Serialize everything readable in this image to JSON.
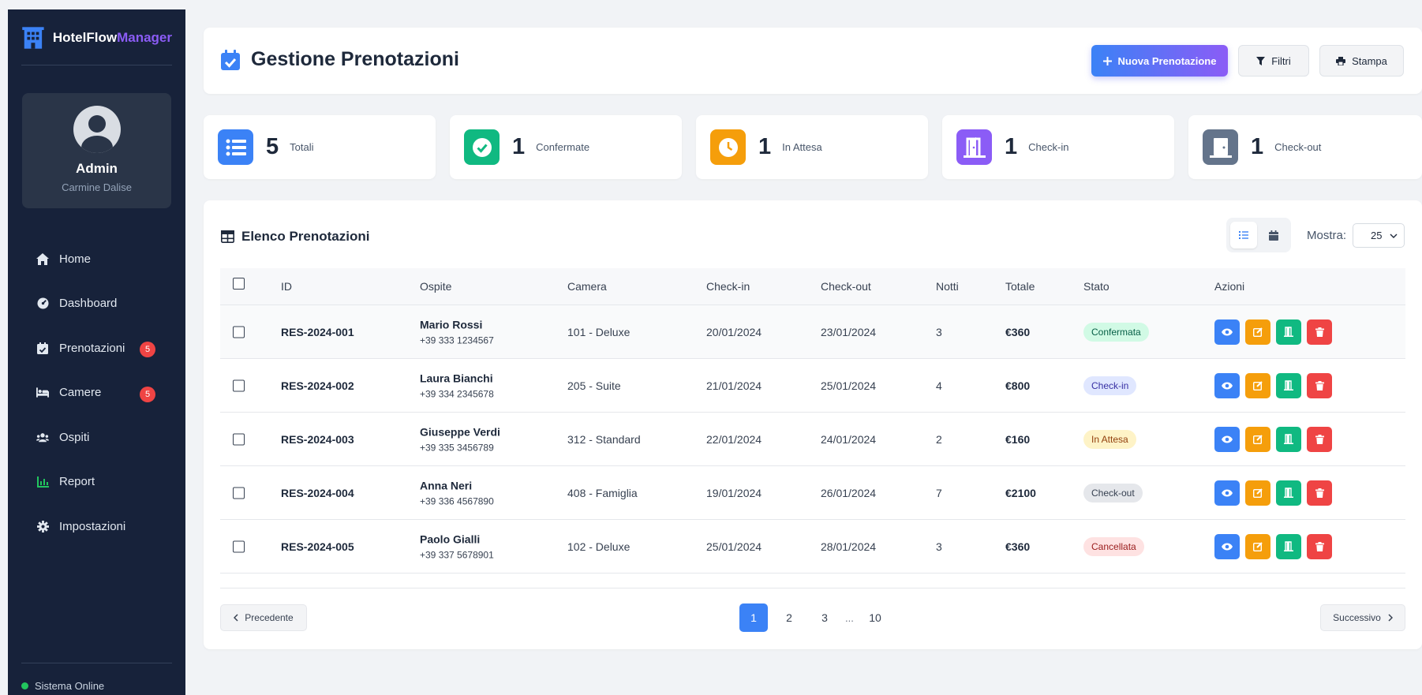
{
  "brand": {
    "name_main": "HotelFlow",
    "name_accent": "Manager"
  },
  "profile": {
    "name": "Admin",
    "subtitle": "Carmine Dalise"
  },
  "sidebar": {
    "items": [
      {
        "label": "Home",
        "icon": "home-icon"
      },
      {
        "label": "Dashboard",
        "icon": "gauge-icon"
      },
      {
        "label": "Prenotazioni",
        "icon": "calendar-check-icon",
        "badge": "5"
      },
      {
        "label": "Camere",
        "icon": "bed-icon",
        "badge": "5"
      },
      {
        "label": "Ospiti",
        "icon": "users-icon"
      },
      {
        "label": "Report",
        "icon": "chart-icon"
      },
      {
        "label": "Impostazioni",
        "icon": "gear-icon"
      }
    ],
    "status": "Sistema Online"
  },
  "header": {
    "title": "Gestione Prenotazioni",
    "new_label": "Nuova Prenotazione",
    "filter_label": "Filtri",
    "print_label": "Stampa"
  },
  "stats": [
    {
      "value": "5",
      "label": "Totali",
      "color": "#3b82f6",
      "icon": "list-icon"
    },
    {
      "value": "1",
      "label": "Confermate",
      "color": "#10b981",
      "icon": "check-circle-icon"
    },
    {
      "value": "1",
      "label": "In Attesa",
      "color": "#f59e0b",
      "icon": "clock-icon"
    },
    {
      "value": "1",
      "label": "Check-in",
      "color": "#8b5cf6",
      "icon": "door-open-icon"
    },
    {
      "value": "1",
      "label": "Check-out",
      "color": "#64748b",
      "icon": "door-closed-icon"
    }
  ],
  "list": {
    "title": "Elenco Prenotazioni",
    "show_label": "Mostra:",
    "show_value": "25",
    "columns": [
      "ID",
      "Ospite",
      "Camera",
      "Check-in",
      "Check-out",
      "Notti",
      "Totale",
      "Stato",
      "Azioni"
    ],
    "rows": [
      {
        "id": "RES-2024-001",
        "guest": "Mario Rossi",
        "phone": "+39 333 1234567",
        "room": "101 - Deluxe",
        "checkin": "20/01/2024",
        "checkout": "23/01/2024",
        "nights": "3",
        "total": "€360",
        "status": "Confermata",
        "status_bg": "#d1fae5",
        "status_fg": "#065f46"
      },
      {
        "id": "RES-2024-002",
        "guest": "Laura Bianchi",
        "phone": "+39 334 2345678",
        "room": "205 - Suite",
        "checkin": "21/01/2024",
        "checkout": "25/01/2024",
        "nights": "4",
        "total": "€800",
        "status": "Check-in",
        "status_bg": "#e0e7ff",
        "status_fg": "#3730a3"
      },
      {
        "id": "RES-2024-003",
        "guest": "Giuseppe Verdi",
        "phone": "+39 335 3456789",
        "room": "312 - Standard",
        "checkin": "22/01/2024",
        "checkout": "24/01/2024",
        "nights": "2",
        "total": "€160",
        "status": "In Attesa",
        "status_bg": "#fef3c7",
        "status_fg": "#92400e"
      },
      {
        "id": "RES-2024-004",
        "guest": "Anna Neri",
        "phone": "+39 336 4567890",
        "room": "408 - Famiglia",
        "checkin": "19/01/2024",
        "checkout": "26/01/2024",
        "nights": "7",
        "total": "€2100",
        "status": "Check-out",
        "status_bg": "#e5e7eb",
        "status_fg": "#374151"
      },
      {
        "id": "RES-2024-005",
        "guest": "Paolo Gialli",
        "phone": "+39 337 5678901",
        "room": "102 - Deluxe",
        "checkin": "25/01/2024",
        "checkout": "28/01/2024",
        "nights": "3",
        "total": "€360",
        "status": "Cancellata",
        "status_bg": "#fee2e2",
        "status_fg": "#991b1b"
      }
    ]
  },
  "pagination": {
    "prev_label": "Precedente",
    "next_label": "Successivo",
    "pages": [
      "1",
      "2",
      "3"
    ],
    "ellipsis": "...",
    "last": "10",
    "current": "1"
  },
  "colors": {
    "view": "#3b82f6",
    "edit": "#f59e0b",
    "checkin": "#10b981",
    "delete": "#ef4444"
  }
}
